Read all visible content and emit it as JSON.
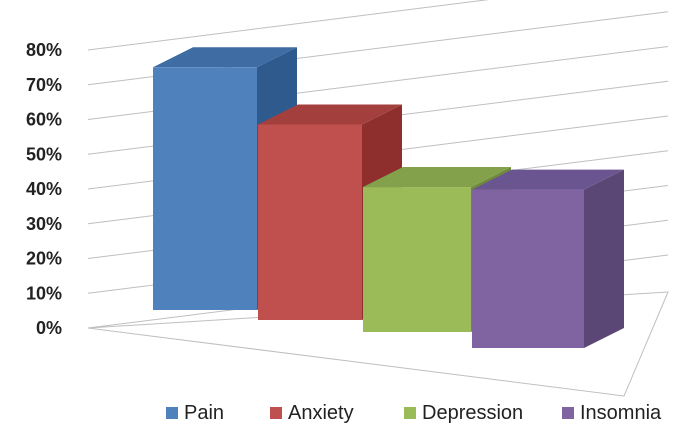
{
  "chart_data": {
    "type": "bar",
    "categories": [
      "Pain",
      "Anxiety",
      "Depression",
      "Insomnia"
    ],
    "values": [
      72,
      58,
      43,
      47
    ],
    "ylim": [
      0,
      80
    ],
    "yticks": [
      "0%",
      "10%",
      "20%",
      "30%",
      "40%",
      "50%",
      "60%",
      "70%",
      "80%"
    ],
    "grid": true,
    "legend_position": "bottom",
    "colors": [
      "#4F81BD",
      "#C0504D",
      "#9BBB59",
      "#8064A2"
    ],
    "side_colors": [
      "#2E5A8E",
      "#8E2F2E",
      "#6F8A3B",
      "#5B4775"
    ],
    "top_colors": [
      "#3F6CA2",
      "#A33F3C",
      "#82A14A",
      "#6B5590"
    ],
    "style": "3d"
  }
}
